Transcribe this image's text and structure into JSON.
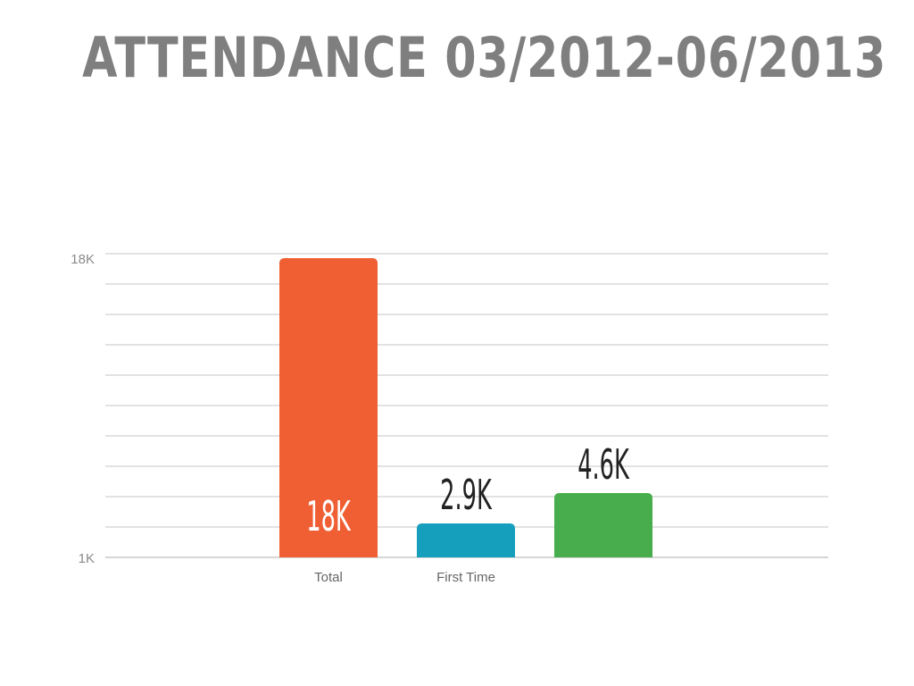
{
  "title": "ATTENDANCE 03/2012-06/2013",
  "chart_data": {
    "type": "bar",
    "title": "ATTENDANCE 03/2012-06/2013",
    "xlabel": "",
    "ylabel": "",
    "categories": [
      "Total",
      "First Time",
      ""
    ],
    "values": [
      18000,
      2900,
      4600
    ],
    "data_labels": [
      "18K",
      "2.9K",
      "4.6K"
    ],
    "ylim": [
      1000,
      18000
    ],
    "ytick_labels": [
      "1K",
      "18K"
    ],
    "gridlines": 10,
    "grid": true,
    "legend": "none",
    "colors": [
      "#f05e33",
      "#159fbd",
      "#48ad4c"
    ],
    "label_colors": [
      "#ffffff",
      "#222222",
      "#222222"
    ],
    "label_inside": [
      true,
      false,
      false
    ]
  }
}
